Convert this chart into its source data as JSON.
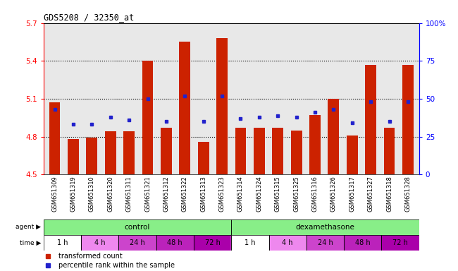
{
  "title": "GDS5208 / 32350_at",
  "samples": [
    "GSM651309",
    "GSM651319",
    "GSM651310",
    "GSM651320",
    "GSM651311",
    "GSM651321",
    "GSM651312",
    "GSM651322",
    "GSM651313",
    "GSM651323",
    "GSM651314",
    "GSM651324",
    "GSM651315",
    "GSM651325",
    "GSM651316",
    "GSM651326",
    "GSM651317",
    "GSM651327",
    "GSM651318",
    "GSM651328"
  ],
  "bar_values": [
    5.07,
    4.78,
    4.79,
    4.84,
    4.84,
    5.4,
    4.87,
    5.55,
    4.76,
    5.58,
    4.87,
    4.87,
    4.87,
    4.85,
    4.97,
    5.1,
    4.81,
    5.37,
    4.87,
    5.37
  ],
  "percentile_values": [
    43,
    33,
    33,
    38,
    36,
    50,
    35,
    52,
    35,
    52,
    37,
    38,
    39,
    38,
    41,
    43,
    34,
    48,
    35,
    48
  ],
  "ymin": 4.5,
  "ymax": 5.7,
  "yticks": [
    4.5,
    4.8,
    5.1,
    5.4,
    5.7
  ],
  "ytick_labels": [
    "4.5",
    "4.8",
    "5.1",
    "5.4",
    "5.7"
  ],
  "right_yticks": [
    0,
    25,
    50,
    75,
    100
  ],
  "right_ytick_labels": [
    "0",
    "25",
    "50",
    "75",
    "100%"
  ],
  "bar_color": "#cc2200",
  "square_color": "#2222cc",
  "plot_bg_color": "#e8e8e8",
  "time_colors": [
    "#ffffff",
    "#ee88ee",
    "#cc44cc",
    "#bb22bb",
    "#aa00aa",
    "#ffffff",
    "#ee88ee",
    "#cc44cc",
    "#bb22bb",
    "#aa00aa"
  ],
  "time_labels": [
    "1 h",
    "4 h",
    "24 h",
    "48 h",
    "72 h",
    "1 h",
    "4 h",
    "24 h",
    "48 h",
    "72 h"
  ],
  "agent_color": "#88ee88",
  "legend_items": [
    {
      "label": "transformed count",
      "color": "#cc2200"
    },
    {
      "label": "percentile rank within the sample",
      "color": "#2222cc"
    }
  ]
}
